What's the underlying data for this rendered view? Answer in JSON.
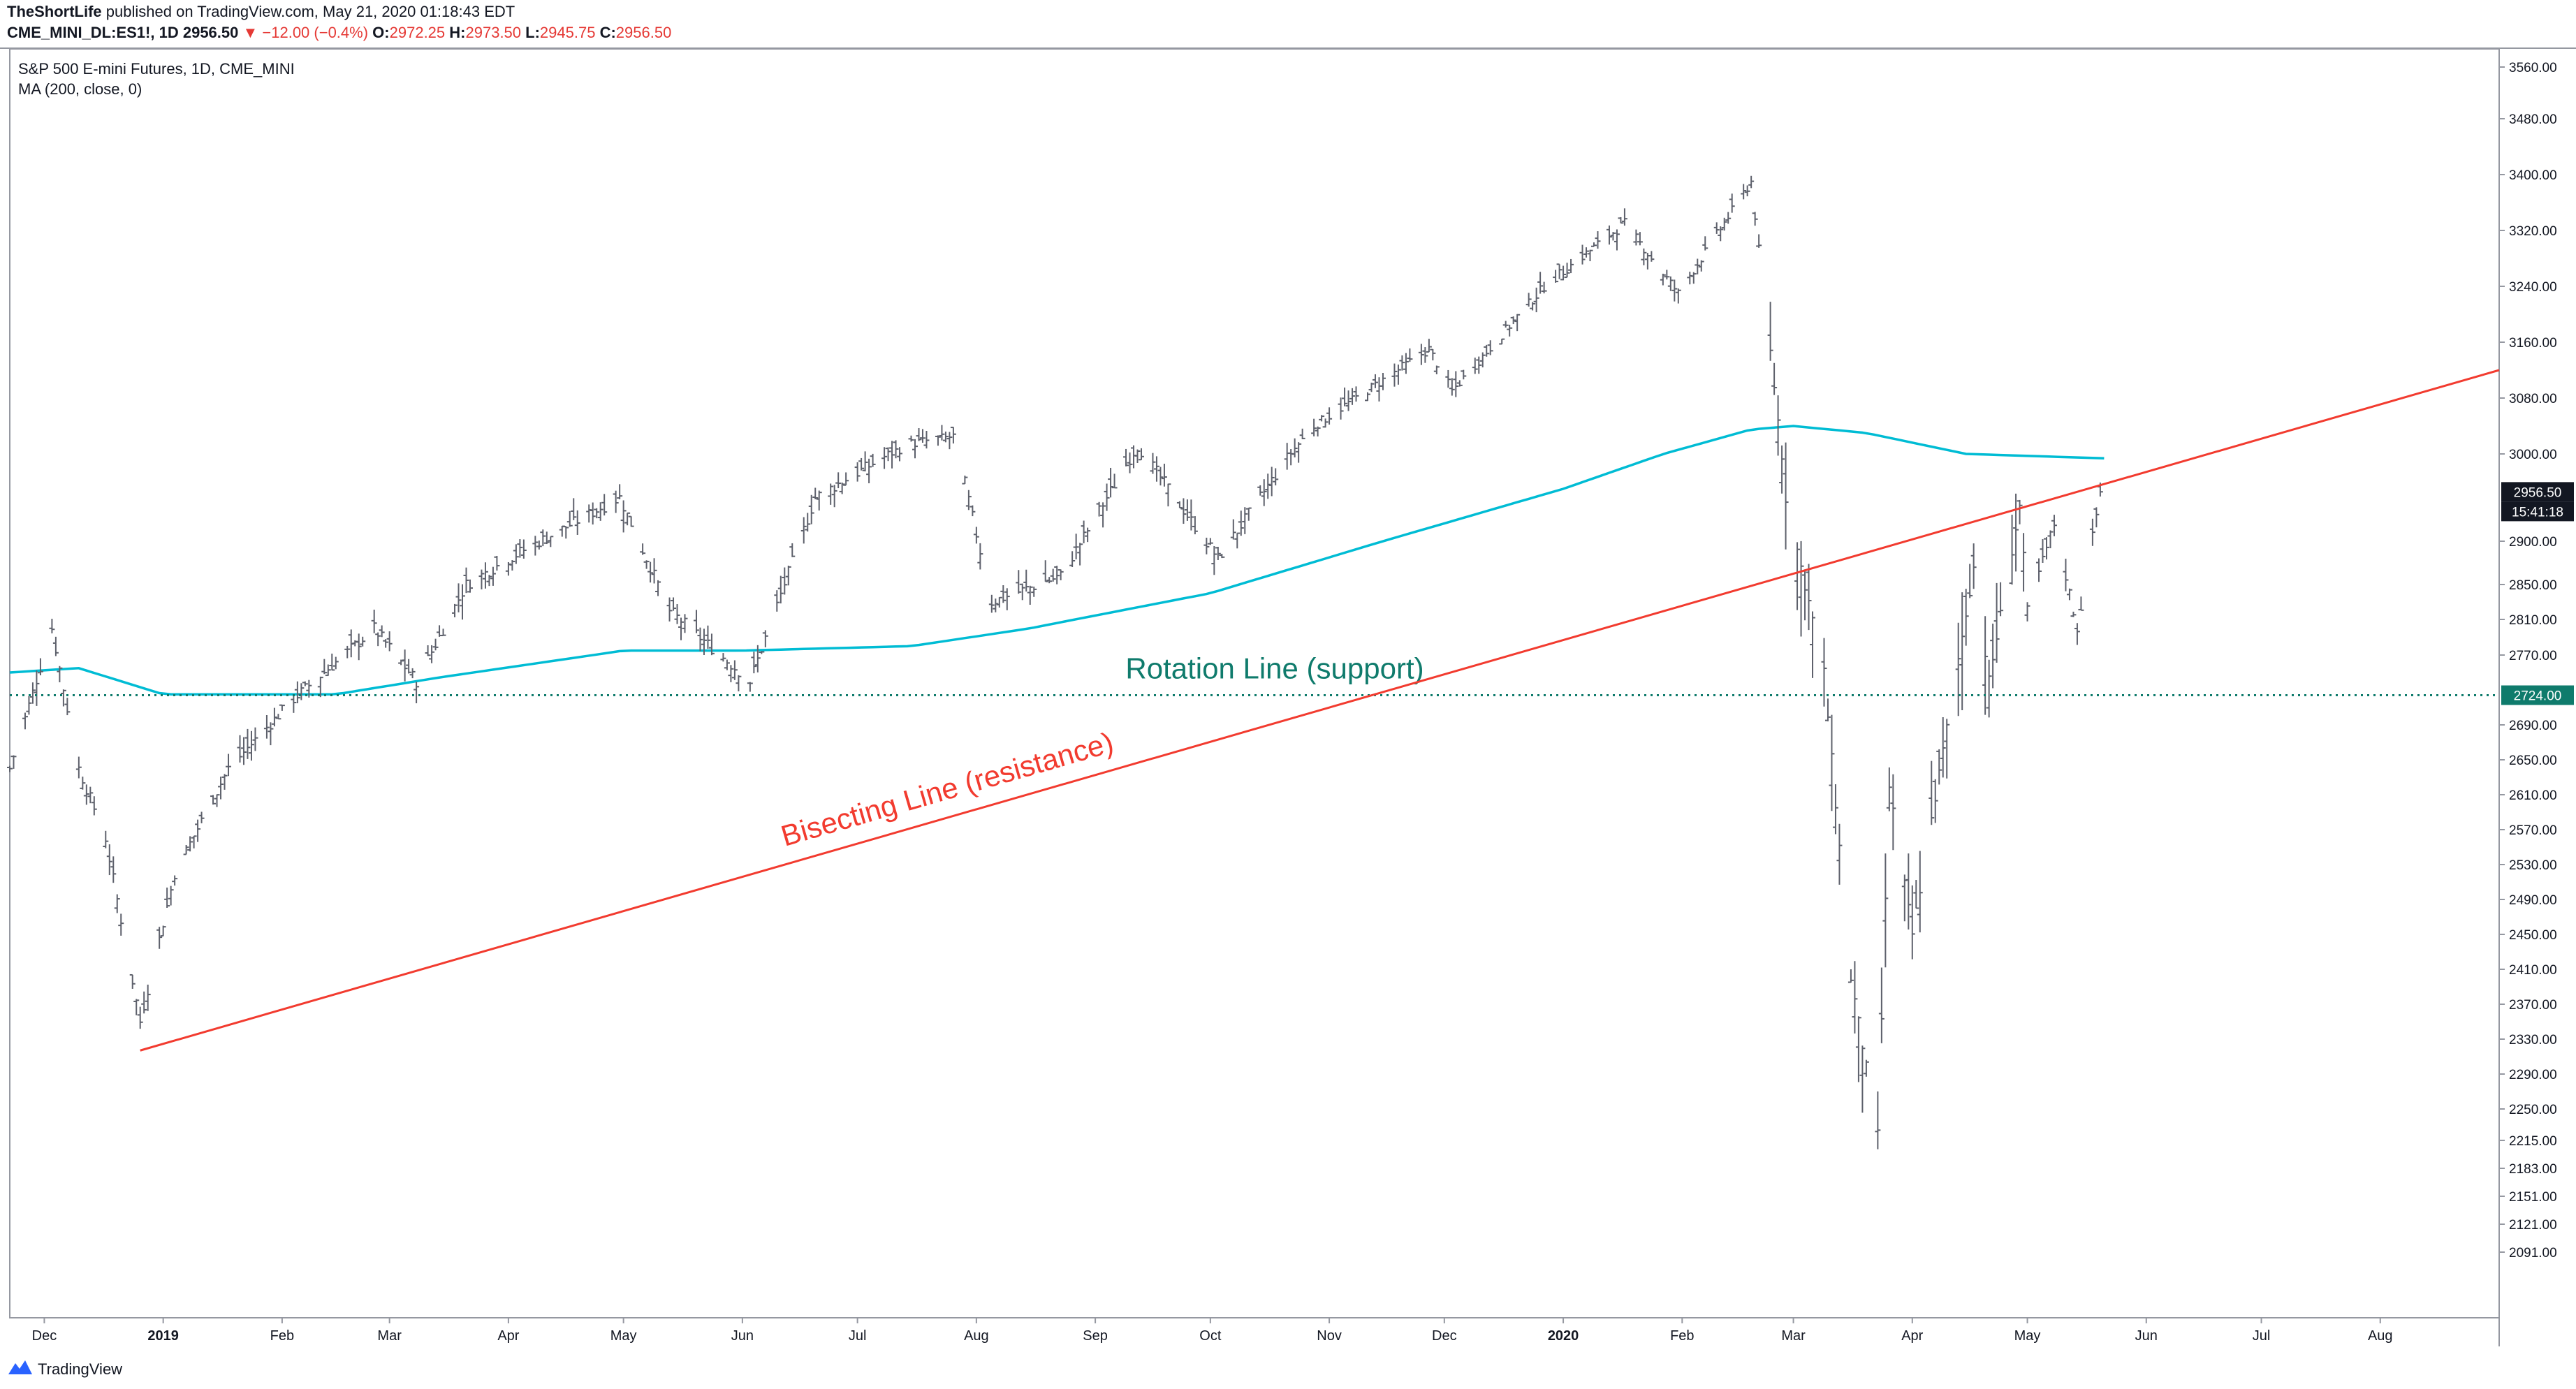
{
  "header": {
    "author": "TheShortLife",
    "published": "published on TradingView.com, May 21, 2020 01:18:43 EDT",
    "symbol": "CME_MINI_DL:ES1!, 1D",
    "last": "2956.50",
    "change": "▼ −12.00 (−0.4%)",
    "o_label": "O:",
    "o_value": "2972.25",
    "h_label": "H:",
    "h_value": "2973.50",
    "l_label": "L:",
    "l_value": "2945.75",
    "c_label": "C:",
    "c_value": "2956.50"
  },
  "legend": {
    "series_title": "S&P 500 E-mini Futures, 1D, CME_MINI",
    "ma_title": "MA (200, close, 0)"
  },
  "colors": {
    "bars": "#5d606b",
    "ma": "#00bcd4",
    "bisecting": "#f23b2f",
    "rotation": "#0f7b6c",
    "last_price_box": "#131722",
    "rotation_box": "#0f7b6c"
  },
  "footer": {
    "brand": "TradingView"
  },
  "chart_data": {
    "type": "ohlc",
    "title": "S&P 500 E-mini Futures, 1D, CME_MINI",
    "ylim": [
      2070,
      3580
    ],
    "x_range": [
      "2018-11-22",
      "2020-09-01"
    ],
    "y_ticks": [
      "3560.00",
      "3480.00",
      "3400.00",
      "3320.00",
      "3240.00",
      "3160.00",
      "3080.00",
      "3000.00",
      "2900.00",
      "2850.00",
      "2810.00",
      "2770.00",
      "2690.00",
      "2650.00",
      "2610.00",
      "2570.00",
      "2530.00",
      "2490.00",
      "2450.00",
      "2410.00",
      "2370.00",
      "2330.00",
      "2290.00",
      "2250.00",
      "2215.00",
      "2183.00",
      "2151.00",
      "2121.00",
      "2091.00"
    ],
    "x_ticks": [
      {
        "label": "Dec",
        "date": "2018-12-01",
        "bold": false
      },
      {
        "label": "2019",
        "date": "2019-01-01",
        "bold": true
      },
      {
        "label": "Feb",
        "date": "2019-02-01",
        "bold": false
      },
      {
        "label": "Mar",
        "date": "2019-03-01",
        "bold": false
      },
      {
        "label": "Apr",
        "date": "2019-04-01",
        "bold": false
      },
      {
        "label": "May",
        "date": "2019-05-01",
        "bold": false
      },
      {
        "label": "Jun",
        "date": "2019-06-01",
        "bold": false
      },
      {
        "label": "Jul",
        "date": "2019-07-01",
        "bold": false
      },
      {
        "label": "Aug",
        "date": "2019-08-01",
        "bold": false
      },
      {
        "label": "Sep",
        "date": "2019-09-01",
        "bold": false
      },
      {
        "label": "Oct",
        "date": "2019-10-01",
        "bold": false
      },
      {
        "label": "Nov",
        "date": "2019-11-01",
        "bold": false
      },
      {
        "label": "Dec",
        "date": "2019-12-01",
        "bold": false
      },
      {
        "label": "2020",
        "date": "2020-01-01",
        "bold": true
      },
      {
        "label": "Feb",
        "date": "2020-02-01",
        "bold": false
      },
      {
        "label": "Mar",
        "date": "2020-03-01",
        "bold": false
      },
      {
        "label": "Apr",
        "date": "2020-04-01",
        "bold": false
      },
      {
        "label": "May",
        "date": "2020-05-01",
        "bold": false
      },
      {
        "label": "Jun",
        "date": "2020-06-01",
        "bold": false
      },
      {
        "label": "Jul",
        "date": "2020-07-01",
        "bold": false
      },
      {
        "label": "Aug",
        "date": "2020-08-01",
        "bold": false
      }
    ],
    "price_keypoints": [
      {
        "x": "2018-11-22",
        "y": 2640
      },
      {
        "x": "2018-12-03",
        "y": 2800
      },
      {
        "x": "2018-12-10",
        "y": 2640
      },
      {
        "x": "2018-12-17",
        "y": 2560
      },
      {
        "x": "2018-12-26",
        "y": 2350
      },
      {
        "x": "2019-01-04",
        "y": 2520
      },
      {
        "x": "2019-01-18",
        "y": 2640
      },
      {
        "x": "2019-02-04",
        "y": 2720
      },
      {
        "x": "2019-02-25",
        "y": 2800
      },
      {
        "x": "2019-03-08",
        "y": 2740
      },
      {
        "x": "2019-03-21",
        "y": 2850
      },
      {
        "x": "2019-04-05",
        "y": 2890
      },
      {
        "x": "2019-04-30",
        "y": 2950
      },
      {
        "x": "2019-05-13",
        "y": 2820
      },
      {
        "x": "2019-06-03",
        "y": 2740
      },
      {
        "x": "2019-06-20",
        "y": 2950
      },
      {
        "x": "2019-07-15",
        "y": 3015
      },
      {
        "x": "2019-07-26",
        "y": 3025
      },
      {
        "x": "2019-08-05",
        "y": 2830
      },
      {
        "x": "2019-08-23",
        "y": 2860
      },
      {
        "x": "2019-09-12",
        "y": 3010
      },
      {
        "x": "2019-10-03",
        "y": 2880
      },
      {
        "x": "2019-10-28",
        "y": 3040
      },
      {
        "x": "2019-11-27",
        "y": 3150
      },
      {
        "x": "2019-12-03",
        "y": 3090
      },
      {
        "x": "2019-12-27",
        "y": 3240
      },
      {
        "x": "2020-01-17",
        "y": 3330
      },
      {
        "x": "2020-01-31",
        "y": 3230
      },
      {
        "x": "2020-02-19",
        "y": 3390
      },
      {
        "x": "2020-02-28",
        "y": 2950
      },
      {
        "x": "2020-03-09",
        "y": 2750
      },
      {
        "x": "2020-03-16",
        "y": 2400
      },
      {
        "x": "2020-03-23",
        "y": 2220
      },
      {
        "x": "2020-03-26",
        "y": 2620
      },
      {
        "x": "2020-04-01",
        "y": 2450
      },
      {
        "x": "2020-04-17",
        "y": 2870
      },
      {
        "x": "2020-04-21",
        "y": 2740
      },
      {
        "x": "2020-04-29",
        "y": 2940
      },
      {
        "x": "2020-05-01",
        "y": 2820
      },
      {
        "x": "2020-05-08",
        "y": 2920
      },
      {
        "x": "2020-05-14",
        "y": 2800
      },
      {
        "x": "2020-05-20",
        "y": 2956.5
      }
    ],
    "ma_keypoints": [
      {
        "x": "2018-11-22",
        "y": 2750
      },
      {
        "x": "2018-12-10",
        "y": 2755
      },
      {
        "x": "2019-01-01",
        "y": 2725
      },
      {
        "x": "2019-02-15",
        "y": 2725
      },
      {
        "x": "2019-03-15",
        "y": 2745
      },
      {
        "x": "2019-05-01",
        "y": 2775
      },
      {
        "x": "2019-06-01",
        "y": 2775
      },
      {
        "x": "2019-07-15",
        "y": 2780
      },
      {
        "x": "2019-08-15",
        "y": 2800
      },
      {
        "x": "2019-10-01",
        "y": 2840
      },
      {
        "x": "2019-11-15",
        "y": 2900
      },
      {
        "x": "2020-01-01",
        "y": 2960
      },
      {
        "x": "2020-02-19",
        "y": 3035
      },
      {
        "x": "2020-03-01",
        "y": 3040
      },
      {
        "x": "2020-03-20",
        "y": 3030
      },
      {
        "x": "2020-04-15",
        "y": 3000
      },
      {
        "x": "2020-05-21",
        "y": 2995
      }
    ],
    "annotations": [
      {
        "name": "rotation-line",
        "text": "Rotation Line (support)",
        "type": "horizontal",
        "y": 2724.0,
        "label": "2724.00"
      },
      {
        "name": "bisecting-line",
        "text": "Bisecting Line (resistance)",
        "type": "trend",
        "from": {
          "x": "2018-12-26",
          "y": 2317
        },
        "to": {
          "x": "2020-09-01",
          "y": 3120
        }
      }
    ],
    "last_price": {
      "value": "2956.50",
      "countdown": "15:41:18"
    }
  }
}
